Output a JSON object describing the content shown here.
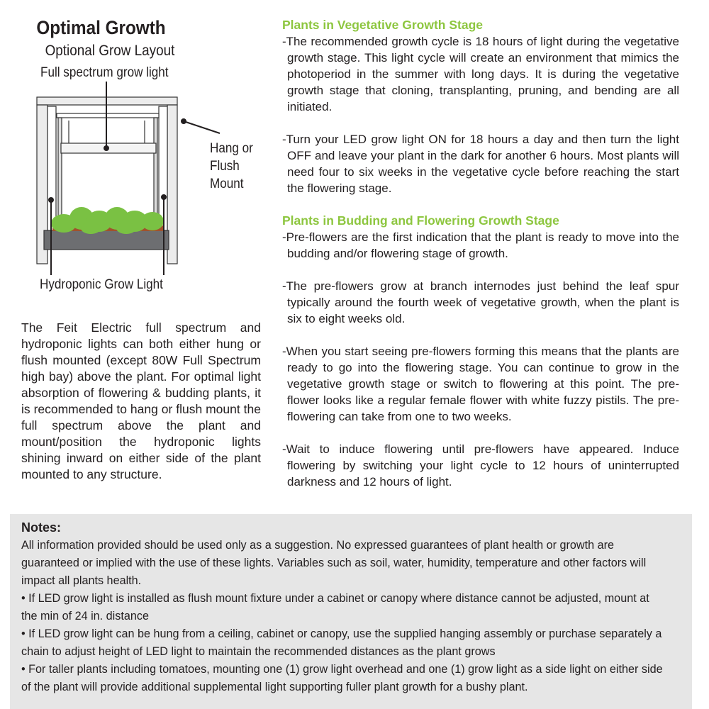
{
  "left": {
    "title": "Optimal Growth",
    "subtitle": "Optional Grow Layout",
    "diagram_labels": {
      "top": "Full spectrum grow light",
      "side": [
        "Hang or",
        "Flush",
        "Mount"
      ],
      "bottom": "Hydroponic Grow Light"
    },
    "paragraph": "The Feit Electric full spectrum and hydroponic lights can both either hung or flush mounted (except 80W Full Spectrum high bay) above the plant. For optimal light absorption of flowering & budding plants, it is recommended to hang or flush mount the full spectrum above the plant and mount/position the hydroponic lights shining inward on either side of the plant mounted to any structure."
  },
  "right": {
    "accent_color": "#8dc63f",
    "sections": [
      {
        "heading": "Plants in Vegetative Growth Stage",
        "paragraphs": [
          "-The recommended growth cycle is 18 hours of light during the vegetative growth stage. This light cycle will create an environment that mimics the photoperiod in the summer with long days. It is during the vegetative growth stage that cloning, transplanting, pruning, and bending are all initiated.",
          "-Turn your LED grow light ON for 18 hours a day and then turn the light OFF and leave your plant in the dark for another 6 hours. Most plants will need four to six weeks in the vegetative cycle before reaching the start the flowering stage."
        ]
      },
      {
        "heading": "Plants in Budding and Flowering Growth Stage",
        "paragraphs": [
          "-Pre-flowers are the first indication that the plant is ready to move into the budding and/or flowering stage of growth.",
          "-The pre-flowers grow at branch internodes just behind the leaf spur typically around the fourth week of vegetative growth, when the plant is six to eight weeks old.",
          "-When you start seeing pre-flowers forming this means that the plants are ready to go into the flowering stage. You can continue to grow in the vegetative growth stage or switch to flowering at this point. The pre-flower looks like a regular female flower with white fuzzy pistils. The pre-flowering can take from one to two weeks.",
          "-Wait to induce flowering until pre-flowers have appeared. Induce flowering by switching your light cycle to 12 hours of uninterrupted darkness and 12 hours of light."
        ]
      }
    ]
  },
  "notes": {
    "heading": "Notes:",
    "intro": "All information provided should be used only as a suggestion. No expressed guarantees of plant health or growth are guaranteed or implied with the use of these lights. Variables such as soil, water, humidity, temperature and other factors will impact all plants health.",
    "bullets": [
      "• If LED grow light is installed as flush mount fixture under a cabinet or canopy where distance cannot be adjusted, mount at the min of 24 in. distance",
      "• If LED grow light can be hung from a ceiling, cabinet or canopy, use the supplied hanging assembly or purchase separately a chain to adjust height of  LED light to maintain the recommended distances as the plant grows",
      "• For taller plants including tomatoes, mounting one (1) grow light overhead and one (1) grow light as a side light on either side of the  plant will provide additional supplemental light supporting fuller plant growth for a bushy plant."
    ]
  }
}
